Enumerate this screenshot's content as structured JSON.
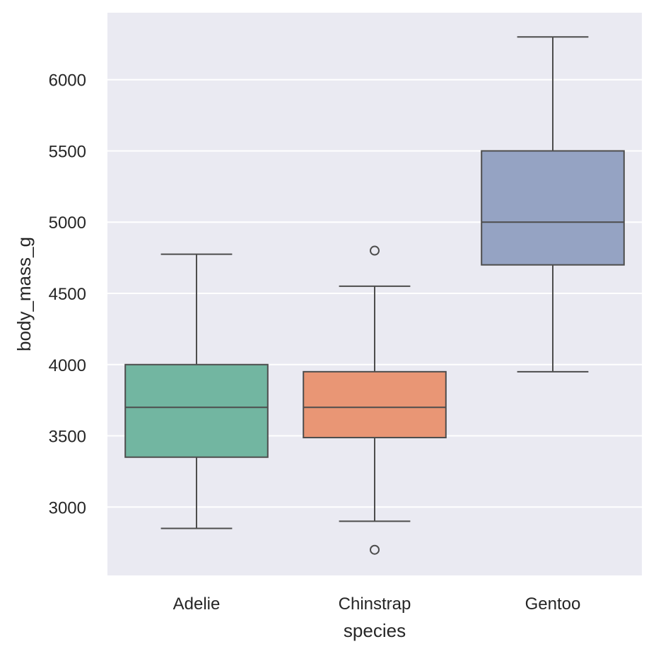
{
  "chart_data": {
    "type": "box",
    "title": "",
    "xlabel": "species",
    "ylabel": "body_mass_g",
    "ylim": [
      2520,
      6470
    ],
    "yticks": [
      3000,
      3500,
      4000,
      4500,
      5000,
      5500,
      6000
    ],
    "grid": true,
    "background": "#EAEAF2",
    "gridColor": "#FFFFFF",
    "lineColor": "#4D4D4D",
    "categories": [
      "Adelie",
      "Chinstrap",
      "Gentoo"
    ],
    "boxes": [
      {
        "category": "Adelie",
        "whisker_low": 2850,
        "q1": 3350,
        "median": 3700,
        "q3": 4000,
        "whisker_high": 4775,
        "outliers": [],
        "color": "#72B6A1"
      },
      {
        "category": "Chinstrap",
        "whisker_low": 2900,
        "q1": 3487.5,
        "median": 3700,
        "q3": 3950,
        "whisker_high": 4550,
        "outliers": [
          4800,
          2700
        ],
        "color": "#E99675"
      },
      {
        "category": "Gentoo",
        "whisker_low": 3950,
        "q1": 4700,
        "median": 5000,
        "q3": 5500,
        "whisker_high": 6300,
        "outliers": [],
        "color": "#95A3C3"
      }
    ]
  }
}
